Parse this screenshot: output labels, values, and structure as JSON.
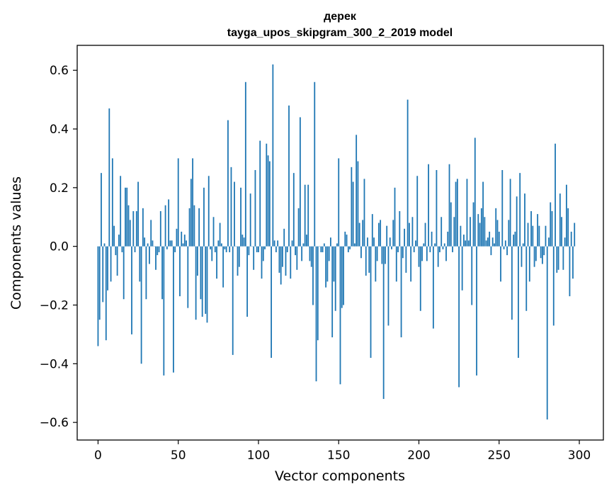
{
  "chart_data": {
    "type": "bar",
    "title": "дерек",
    "subtitle": "tayga_upos_skipgram_300_2_2019 model",
    "xlabel": "Vector components",
    "ylabel": "Components values",
    "xlim": [
      -13,
      315
    ],
    "ylim": [
      -0.66,
      0.685
    ],
    "grid": false,
    "bar_color": "#1f77b4",
    "xticks": [
      0,
      50,
      100,
      150,
      200,
      250,
      300
    ],
    "xtick_labels": [
      "0",
      "50",
      "100",
      "150",
      "200",
      "250",
      "300"
    ],
    "yticks": [
      0.6,
      0.4,
      0.2,
      0.0,
      -0.2,
      -0.4,
      -0.6
    ],
    "ytick_labels": [
      "0.6",
      "0.4",
      "0.2",
      "0.0",
      "−0.2",
      "−0.4",
      "−0.6"
    ],
    "x_start": 0,
    "values": [
      -0.34,
      -0.25,
      0.25,
      -0.19,
      0.01,
      -0.32,
      -0.15,
      0.47,
      -0.12,
      0.3,
      0.07,
      -0.03,
      -0.1,
      0.04,
      0.24,
      -0.02,
      -0.18,
      0.2,
      0.2,
      0.14,
      0.09,
      -0.3,
      0.12,
      -0.02,
      0.12,
      0.22,
      -0.12,
      -0.4,
      0.13,
      0.03,
      -0.18,
      0.01,
      -0.06,
      0.09,
      0.02,
      0.0,
      -0.08,
      -0.03,
      -0.02,
      0.12,
      -0.18,
      -0.44,
      0.14,
      -0.01,
      0.16,
      0.02,
      0.02,
      -0.43,
      -0.02,
      0.06,
      0.3,
      -0.17,
      0.05,
      0.01,
      0.04,
      0.02,
      -0.21,
      0.13,
      0.23,
      0.3,
      0.14,
      -0.25,
      -0.1,
      0.13,
      -0.18,
      -0.24,
      0.2,
      -0.23,
      -0.26,
      0.24,
      -0.01,
      -0.05,
      0.1,
      -0.02,
      -0.11,
      0.02,
      0.08,
      0.01,
      -0.14,
      -0.01,
      -0.02,
      0.43,
      -0.02,
      0.27,
      -0.37,
      0.22,
      0.0,
      -0.1,
      -0.07,
      0.2,
      0.04,
      0.03,
      0.56,
      -0.24,
      -0.03,
      0.18,
      0.0,
      -0.08,
      0.26,
      -0.02,
      -0.02,
      0.36,
      -0.11,
      -0.05,
      -0.01,
      0.35,
      0.31,
      0.29,
      -0.38,
      0.62,
      0.02,
      -0.02,
      0.02,
      -0.09,
      -0.13,
      -0.07,
      0.06,
      -0.1,
      -0.02,
      0.48,
      -0.11,
      0.02,
      0.25,
      -0.03,
      -0.08,
      0.13,
      0.44,
      -0.05,
      0.01,
      0.21,
      0.04,
      0.21,
      -0.05,
      -0.07,
      -0.2,
      0.56,
      -0.46,
      -0.32,
      0.0,
      -0.02,
      -0.02,
      0.01,
      -0.14,
      -0.12,
      -0.05,
      0.03,
      -0.31,
      -0.12,
      -0.22,
      0.01,
      0.3,
      -0.47,
      -0.21,
      -0.2,
      0.05,
      0.04,
      -0.02,
      -0.01,
      0.27,
      0.22,
      0.01,
      0.38,
      0.29,
      0.08,
      -0.04,
      0.09,
      0.23,
      -0.1,
      0.03,
      -0.09,
      -0.38,
      0.11,
      0.03,
      -0.12,
      -0.05,
      0.08,
      0.09,
      -0.06,
      -0.52,
      -0.06,
      0.07,
      -0.27,
      0.03,
      -0.01,
      0.09,
      0.2,
      -0.12,
      -0.02,
      0.12,
      -0.31,
      -0.04,
      0.06,
      -0.09,
      0.5,
      0.08,
      -0.12,
      0.1,
      -0.02,
      0.02,
      0.24,
      -0.07,
      -0.22,
      -0.05,
      0.01,
      0.08,
      -0.05,
      0.28,
      -0.02,
      0.05,
      -0.28,
      0.01,
      0.26,
      -0.07,
      -0.02,
      0.1,
      -0.01,
      0.01,
      -0.05,
      0.05,
      0.28,
      0.15,
      -0.02,
      0.1,
      0.22,
      0.23,
      -0.48,
      0.07,
      -0.15,
      0.04,
      0.02,
      0.23,
      0.02,
      0.1,
      -0.2,
      0.15,
      0.37,
      -0.44,
      0.11,
      0.08,
      0.13,
      0.22,
      0.1,
      0.02,
      0.03,
      0.05,
      -0.03,
      0.03,
      0.01,
      0.13,
      0.09,
      0.05,
      -0.12,
      0.26,
      -0.01,
      0.02,
      -0.03,
      0.09,
      0.23,
      -0.25,
      0.04,
      0.05,
      0.17,
      -0.38,
      0.25,
      -0.07,
      0.01,
      0.18,
      -0.22,
      0.08,
      -0.12,
      0.12,
      0.07,
      -0.07,
      -0.05,
      0.11,
      0.07,
      -0.04,
      -0.06,
      -0.03,
      0.07,
      -0.59,
      0.03,
      0.15,
      0.12,
      -0.27,
      0.35,
      -0.09,
      -0.08,
      0.18,
      0.1,
      -0.08,
      0.03,
      0.21,
      0.13,
      -0.17,
      0.05,
      -0.11,
      0.08
    ]
  }
}
